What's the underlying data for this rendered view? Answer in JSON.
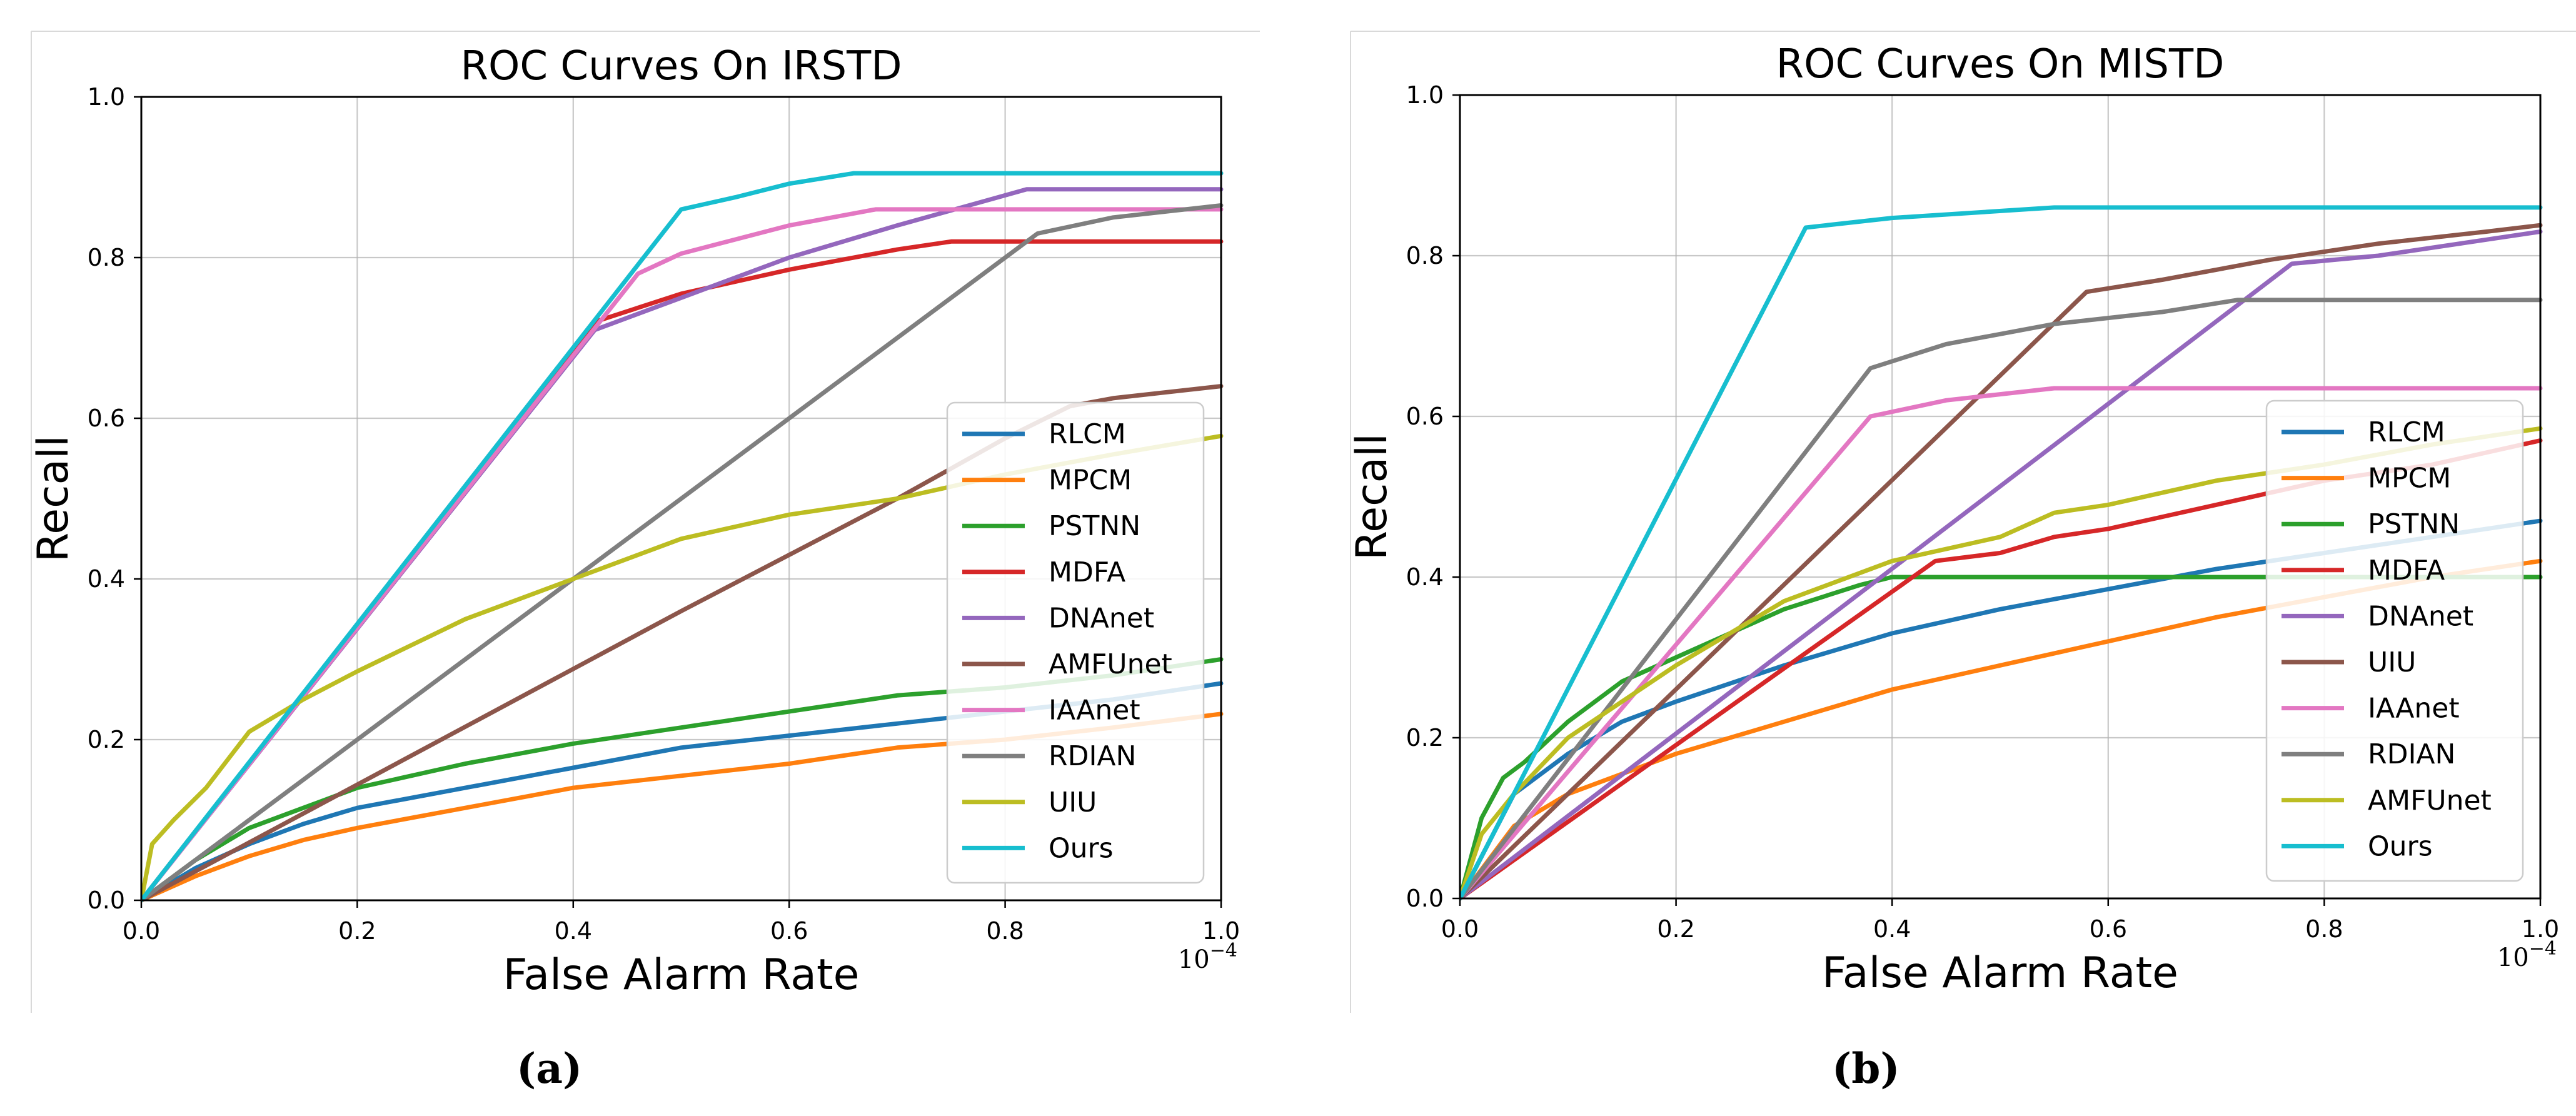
{
  "figure": {
    "captions": [
      "(a)",
      "(b)"
    ]
  },
  "chart_data": [
    {
      "type": "line",
      "title": "ROC Curves On IRSTD",
      "xlabel": "False Alarm Rate",
      "ylabel": "Recall",
      "x_scale_label": "10−4",
      "xlim": [
        0.0,
        1.0
      ],
      "ylim": [
        0.0,
        1.0
      ],
      "xticks": [
        "0.0",
        "0.2",
        "0.4",
        "0.6",
        "0.8",
        "1.0"
      ],
      "yticks": [
        "0.0",
        "0.2",
        "0.4",
        "0.6",
        "0.8",
        "1.0"
      ],
      "grid": true,
      "legend_position": "lower-right",
      "series": [
        {
          "name": "RLCM",
          "color": "#1f77b4",
          "points": [
            [
              0,
              0
            ],
            [
              0.05,
              0.04
            ],
            [
              0.1,
              0.07
            ],
            [
              0.15,
              0.095
            ],
            [
              0.2,
              0.115
            ],
            [
              0.3,
              0.14
            ],
            [
              0.4,
              0.165
            ],
            [
              0.5,
              0.19
            ],
            [
              0.6,
              0.205
            ],
            [
              0.7,
              0.22
            ],
            [
              0.8,
              0.235
            ],
            [
              0.9,
              0.25
            ],
            [
              1.0,
              0.27
            ]
          ]
        },
        {
          "name": "MPCM",
          "color": "#ff7f0e",
          "points": [
            [
              0,
              0
            ],
            [
              0.05,
              0.03
            ],
            [
              0.1,
              0.055
            ],
            [
              0.15,
              0.075
            ],
            [
              0.2,
              0.09
            ],
            [
              0.3,
              0.115
            ],
            [
              0.4,
              0.14
            ],
            [
              0.5,
              0.155
            ],
            [
              0.6,
              0.17
            ],
            [
              0.7,
              0.19
            ],
            [
              0.8,
              0.2
            ],
            [
              0.9,
              0.215
            ],
            [
              1.0,
              0.232
            ]
          ]
        },
        {
          "name": "PSTNN",
          "color": "#2ca02c",
          "points": [
            [
              0,
              0
            ],
            [
              0.05,
              0.05
            ],
            [
              0.1,
              0.09
            ],
            [
              0.15,
              0.115
            ],
            [
              0.2,
              0.14
            ],
            [
              0.3,
              0.17
            ],
            [
              0.4,
              0.195
            ],
            [
              0.5,
              0.215
            ],
            [
              0.6,
              0.235
            ],
            [
              0.7,
              0.255
            ],
            [
              0.8,
              0.265
            ],
            [
              0.9,
              0.28
            ],
            [
              1.0,
              0.3
            ]
          ]
        },
        {
          "name": "MDFA",
          "color": "#d62728",
          "points": [
            [
              0,
              0
            ],
            [
              0.42,
              0.72
            ],
            [
              0.5,
              0.755
            ],
            [
              0.6,
              0.785
            ],
            [
              0.7,
              0.81
            ],
            [
              0.75,
              0.82
            ],
            [
              1.0,
              0.82
            ]
          ]
        },
        {
          "name": "DNAnet",
          "color": "#9467bd",
          "points": [
            [
              0,
              0
            ],
            [
              0.42,
              0.71
            ],
            [
              0.5,
              0.75
            ],
            [
              0.6,
              0.8
            ],
            [
              0.7,
              0.84
            ],
            [
              0.82,
              0.885
            ],
            [
              1.0,
              0.885
            ]
          ]
        },
        {
          "name": "AMFUnet",
          "color": "#8c564b",
          "points": [
            [
              0,
              0
            ],
            [
              0.5,
              0.36
            ],
            [
              0.6,
              0.43
            ],
            [
              0.7,
              0.5
            ],
            [
              0.8,
              0.575
            ],
            [
              0.86,
              0.615
            ],
            [
              0.9,
              0.625
            ],
            [
              1.0,
              0.64
            ]
          ]
        },
        {
          "name": "IAAnet",
          "color": "#e377c2",
          "points": [
            [
              0,
              0
            ],
            [
              0.46,
              0.78
            ],
            [
              0.5,
              0.805
            ],
            [
              0.6,
              0.84
            ],
            [
              0.68,
              0.86
            ],
            [
              1.0,
              0.86
            ]
          ]
        },
        {
          "name": "RDIAN",
          "color": "#7f7f7f",
          "points": [
            [
              0,
              0
            ],
            [
              0.83,
              0.83
            ],
            [
              0.9,
              0.85
            ],
            [
              1.0,
              0.865
            ]
          ]
        },
        {
          "name": "UIU",
          "color": "#bcbd22",
          "points": [
            [
              0,
              0
            ],
            [
              0.01,
              0.07
            ],
            [
              0.03,
              0.1
            ],
            [
              0.06,
              0.14
            ],
            [
              0.1,
              0.21
            ],
            [
              0.15,
              0.25
            ],
            [
              0.2,
              0.285
            ],
            [
              0.3,
              0.35
            ],
            [
              0.4,
              0.4
            ],
            [
              0.5,
              0.45
            ],
            [
              0.6,
              0.48
            ],
            [
              0.7,
              0.5
            ],
            [
              0.8,
              0.53
            ],
            [
              0.9,
              0.555
            ],
            [
              1.0,
              0.578
            ]
          ]
        },
        {
          "name": "Ours",
          "color": "#17becf",
          "points": [
            [
              0,
              0
            ],
            [
              0.5,
              0.86
            ],
            [
              0.55,
              0.875
            ],
            [
              0.6,
              0.892
            ],
            [
              0.66,
              0.905
            ],
            [
              1.0,
              0.905
            ]
          ]
        }
      ]
    },
    {
      "type": "line",
      "title": "ROC Curves On MISTD",
      "xlabel": "False Alarm Rate",
      "ylabel": "Recall",
      "x_scale_label": "10−4",
      "xlim": [
        0.0,
        1.0
      ],
      "ylim": [
        0.0,
        1.0
      ],
      "xticks": [
        "0.0",
        "0.2",
        "0.4",
        "0.6",
        "0.8",
        "1.0"
      ],
      "yticks": [
        "0.0",
        "0.2",
        "0.4",
        "0.6",
        "0.8",
        "1.0"
      ],
      "grid": true,
      "legend_position": "lower-right",
      "series": [
        {
          "name": "RLCM",
          "color": "#1f77b4",
          "points": [
            [
              0,
              0
            ],
            [
              0.05,
              0.13
            ],
            [
              0.1,
              0.18
            ],
            [
              0.15,
              0.22
            ],
            [
              0.2,
              0.245
            ],
            [
              0.3,
              0.29
            ],
            [
              0.4,
              0.33
            ],
            [
              0.5,
              0.36
            ],
            [
              0.6,
              0.385
            ],
            [
              0.7,
              0.41
            ],
            [
              0.8,
              0.43
            ],
            [
              0.9,
              0.45
            ],
            [
              1.0,
              0.47
            ]
          ]
        },
        {
          "name": "MPCM",
          "color": "#ff7f0e",
          "points": [
            [
              0,
              0
            ],
            [
              0.05,
              0.09
            ],
            [
              0.1,
              0.13
            ],
            [
              0.2,
              0.18
            ],
            [
              0.3,
              0.22
            ],
            [
              0.4,
              0.26
            ],
            [
              0.5,
              0.29
            ],
            [
              0.6,
              0.32
            ],
            [
              0.7,
              0.35
            ],
            [
              0.8,
              0.375
            ],
            [
              0.9,
              0.4
            ],
            [
              1.0,
              0.42
            ]
          ]
        },
        {
          "name": "PSTNN",
          "color": "#2ca02c",
          "points": [
            [
              0,
              0
            ],
            [
              0.02,
              0.1
            ],
            [
              0.04,
              0.15
            ],
            [
              0.06,
              0.17
            ],
            [
              0.1,
              0.22
            ],
            [
              0.15,
              0.27
            ],
            [
              0.2,
              0.3
            ],
            [
              0.3,
              0.36
            ],
            [
              0.37,
              0.39
            ],
            [
              0.4,
              0.4
            ],
            [
              1.0,
              0.4
            ]
          ]
        },
        {
          "name": "MDFA",
          "color": "#d62728",
          "points": [
            [
              0,
              0
            ],
            [
              0.44,
              0.42
            ],
            [
              0.5,
              0.43
            ],
            [
              0.55,
              0.45
            ],
            [
              0.6,
              0.46
            ],
            [
              0.7,
              0.49
            ],
            [
              0.8,
              0.52
            ],
            [
              0.9,
              0.54
            ],
            [
              1.0,
              0.57
            ]
          ]
        },
        {
          "name": "DNAnet",
          "color": "#9467bd",
          "points": [
            [
              0,
              0
            ],
            [
              0.77,
              0.79
            ],
            [
              0.85,
              0.8
            ],
            [
              0.95,
              0.82
            ],
            [
              1.0,
              0.83
            ]
          ]
        },
        {
          "name": "UIU",
          "color": "#8c564b",
          "points": [
            [
              0,
              0
            ],
            [
              0.58,
              0.755
            ],
            [
              0.65,
              0.77
            ],
            [
              0.75,
              0.795
            ],
            [
              0.85,
              0.815
            ],
            [
              0.95,
              0.83
            ],
            [
              1.0,
              0.838
            ]
          ]
        },
        {
          "name": "IAAnet",
          "color": "#e377c2",
          "points": [
            [
              0,
              0
            ],
            [
              0.38,
              0.6
            ],
            [
              0.45,
              0.62
            ],
            [
              0.55,
              0.635
            ],
            [
              1.0,
              0.635
            ]
          ]
        },
        {
          "name": "RDIAN",
          "color": "#7f7f7f",
          "points": [
            [
              0,
              0
            ],
            [
              0.38,
              0.66
            ],
            [
              0.45,
              0.69
            ],
            [
              0.55,
              0.715
            ],
            [
              0.65,
              0.73
            ],
            [
              0.72,
              0.745
            ],
            [
              1.0,
              0.745
            ]
          ]
        },
        {
          "name": "AMFUnet",
          "color": "#bcbd22",
          "points": [
            [
              0,
              0
            ],
            [
              0.02,
              0.08
            ],
            [
              0.05,
              0.13
            ],
            [
              0.1,
              0.2
            ],
            [
              0.2,
              0.29
            ],
            [
              0.3,
              0.37
            ],
            [
              0.4,
              0.42
            ],
            [
              0.5,
              0.45
            ],
            [
              0.55,
              0.48
            ],
            [
              0.6,
              0.49
            ],
            [
              0.7,
              0.52
            ],
            [
              0.8,
              0.54
            ],
            [
              0.9,
              0.565
            ],
            [
              1.0,
              0.585
            ]
          ]
        },
        {
          "name": "Ours",
          "color": "#17becf",
          "points": [
            [
              0,
              0
            ],
            [
              0.32,
              0.835
            ],
            [
              0.4,
              0.847
            ],
            [
              0.55,
              0.86
            ],
            [
              1.0,
              0.86
            ]
          ]
        }
      ]
    }
  ]
}
